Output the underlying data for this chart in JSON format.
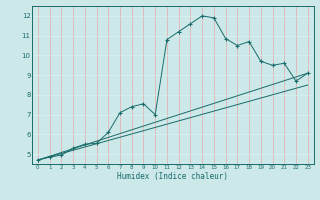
{
  "title": "",
  "xlabel": "Humidex (Indice chaleur)",
  "ylabel": "",
  "bg_color": "#cce8e8",
  "grid_color_v": "#e8a8a8",
  "grid_color_h": "#d8f0f0",
  "line_color": "#1a6b6b",
  "xlim": [
    -0.5,
    23.5
  ],
  "ylim": [
    4.5,
    12.5
  ],
  "yticks": [
    5,
    6,
    7,
    8,
    9,
    10,
    11,
    12
  ],
  "xticks": [
    0,
    1,
    2,
    3,
    4,
    5,
    6,
    7,
    8,
    9,
    10,
    11,
    12,
    13,
    14,
    15,
    16,
    17,
    18,
    19,
    20,
    21,
    22,
    23
  ],
  "main_x": [
    0,
    1,
    2,
    3,
    4,
    5,
    6,
    7,
    8,
    9,
    10,
    11,
    12,
    13,
    14,
    15,
    16,
    17,
    18,
    19,
    20,
    21,
    22,
    23
  ],
  "main_y": [
    4.7,
    4.85,
    4.95,
    5.3,
    5.5,
    5.55,
    6.1,
    7.1,
    7.4,
    7.55,
    7.0,
    10.8,
    11.2,
    11.6,
    12.0,
    11.9,
    10.85,
    10.5,
    10.7,
    9.7,
    9.5,
    9.6,
    8.7,
    9.1
  ],
  "line1_x": [
    0,
    23
  ],
  "line1_y": [
    4.7,
    9.1
  ],
  "line2_x": [
    0,
    23
  ],
  "line2_y": [
    4.7,
    8.5
  ]
}
